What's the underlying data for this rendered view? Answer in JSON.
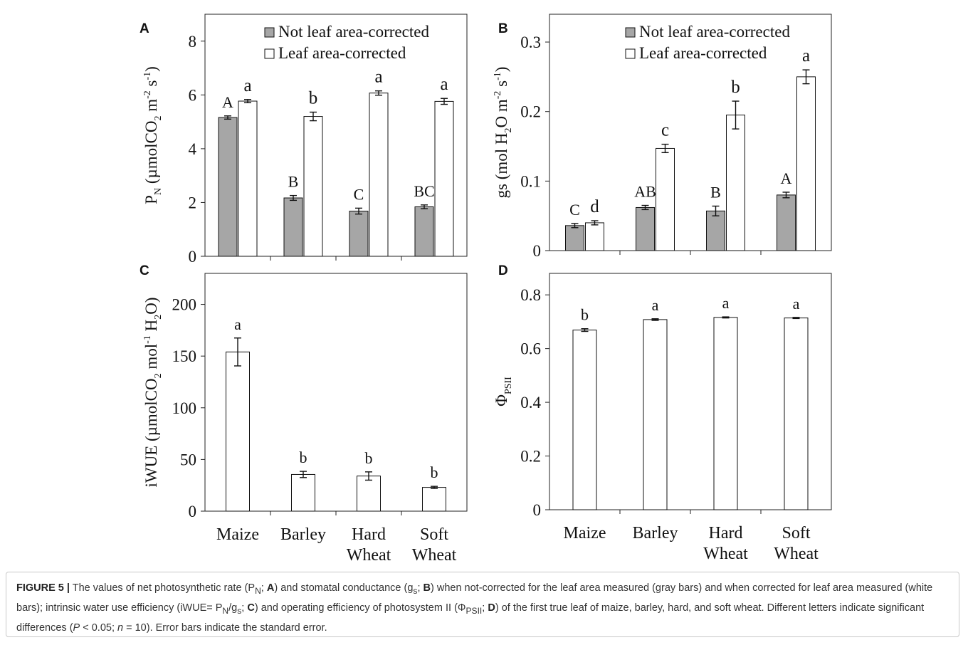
{
  "chart_data": [
    {
      "panel": "A",
      "type": "bar",
      "ylabel_main": "P",
      "ylabel_sub": "N",
      "ylabel_rest": " (µmolCO",
      "ylabel_sub2": "2",
      "ylabel_rest2": " m",
      "ylabel_sup1": "-2",
      "ylabel_rest3": " s",
      "ylabel_sup2": "-1",
      "ylabel_end": ")",
      "ylim": [
        0,
        9
      ],
      "yticks": [
        0,
        2,
        4,
        6,
        8
      ],
      "ytick_labels": [
        "0",
        "2",
        "4",
        "6",
        "8"
      ],
      "categories": [
        "Maize",
        "Barley",
        "Hard Wheat",
        "Soft Wheat"
      ],
      "legend": [
        "Not leaf area-corrected",
        "Leaf area-corrected"
      ],
      "series": [
        {
          "name": "Not leaf area-corrected",
          "color": "#a6a6a6",
          "values": [
            5.16,
            2.17,
            1.68,
            1.84
          ],
          "errors": [
            0.06,
            0.09,
            0.11,
            0.07
          ],
          "letters": [
            "A",
            "B",
            "C",
            "BC"
          ]
        },
        {
          "name": "Leaf area-corrected",
          "color": "#ffffff",
          "values": [
            5.77,
            5.2,
            6.07,
            5.76
          ],
          "errors": [
            0.06,
            0.16,
            0.08,
            0.11
          ],
          "letters": [
            "a",
            "b",
            "a",
            "a"
          ]
        }
      ]
    },
    {
      "panel": "B",
      "type": "bar",
      "ylabel_main": "gs (mol H",
      "ylabel_sub": "2",
      "ylabel_rest": "O m",
      "ylabel_sup1": "-2",
      "ylabel_rest3": " s",
      "ylabel_sup2": "-1",
      "ylabel_end": ")",
      "ylim": [
        0,
        0.34
      ],
      "yticks": [
        0,
        0.1,
        0.2,
        0.3
      ],
      "ytick_labels": [
        "0",
        "0.1",
        "0.2",
        "0.3"
      ],
      "categories": [
        "Maize",
        "Barley",
        "Hard Wheat",
        "Soft Wheat"
      ],
      "legend": [
        "Not leaf area-corrected",
        "Leaf area-corrected"
      ],
      "series": [
        {
          "name": "Not leaf area-corrected",
          "color": "#a6a6a6",
          "values": [
            0.036,
            0.062,
            0.057,
            0.08
          ],
          "errors": [
            0.003,
            0.003,
            0.007,
            0.004
          ],
          "letters": [
            "C",
            "AB",
            "B",
            "A"
          ]
        },
        {
          "name": "Leaf area-corrected",
          "color": "#ffffff",
          "values": [
            0.04,
            0.147,
            0.195,
            0.25
          ],
          "errors": [
            0.003,
            0.006,
            0.02,
            0.01
          ],
          "letters": [
            "d",
            "c",
            "b",
            "a"
          ]
        }
      ]
    },
    {
      "panel": "C",
      "type": "bar",
      "ylabel_main": "iWUE (µmolCO",
      "ylabel_sub": "2",
      "ylabel_rest": " mol",
      "ylabel_sup1": "-1",
      "ylabel_rest3": " H",
      "ylabel_sub3": "2",
      "ylabel_end": "O)",
      "ylim": [
        0,
        230
      ],
      "yticks": [
        0,
        50,
        100,
        150,
        200
      ],
      "ytick_labels": [
        "0",
        "50",
        "100",
        "150",
        "200"
      ],
      "categories": [
        "Maize",
        "Barley",
        "Hard Wheat",
        "Soft Wheat"
      ],
      "category_lines": [
        [
          "Maize"
        ],
        [
          "Barley"
        ],
        [
          "Hard",
          "Wheat"
        ],
        [
          "Soft",
          "Wheat"
        ]
      ],
      "series": [
        {
          "color": "#ffffff",
          "values": [
            154,
            35.5,
            34,
            23
          ],
          "errors": [
            13.5,
            3,
            4,
            1
          ],
          "letters": [
            "a",
            "b",
            "b",
            "b"
          ]
        }
      ]
    },
    {
      "panel": "D",
      "type": "bar",
      "ylabel_main": "Φ",
      "ylabel_sub": "PSII",
      "ylim": [
        0,
        0.88
      ],
      "yticks": [
        0,
        0.2,
        0.4,
        0.6,
        0.8
      ],
      "ytick_labels": [
        "0",
        "0.2",
        "0.4",
        "0.6",
        "0.8"
      ],
      "categories": [
        "Maize",
        "Barley",
        "Hard Wheat",
        "Soft Wheat"
      ],
      "category_lines": [
        [
          "Maize"
        ],
        [
          "Barley"
        ],
        [
          "Hard",
          "Wheat"
        ],
        [
          "Soft",
          "Wheat"
        ]
      ],
      "series": [
        {
          "color": "#ffffff",
          "values": [
            0.669,
            0.708,
            0.716,
            0.714
          ],
          "errors": [
            0.005,
            0.003,
            0.002,
            0.002
          ],
          "letters": [
            "b",
            "a",
            "a",
            "a"
          ]
        }
      ]
    }
  ],
  "caption": {
    "label": "FIGURE 5 |",
    "t1": " The values of net photosynthetic rate (P",
    "s1": "N",
    "t2": "; ",
    "b1": "A",
    "t3": ") and stomatal conductance (g",
    "s2": "s",
    "t4": "; ",
    "b2": "B",
    "t5": ") when not-corrected for the leaf area measured (gray bars) and when corrected for leaf area measured (white bars); intrinsic water use efficiency (iWUE= P",
    "s3": "N",
    "t6": "/g",
    "s4": "s",
    "t7": "; ",
    "b3": "C",
    "t8": ") and operating efficiency of photosystem II (Φ",
    "s5": "PSII",
    "t9": "; ",
    "b4": "D",
    "t10": ") of the first true leaf of maize, barley, hard, and soft wheat. Different letters indicate significant differences (",
    "i1": "P",
    "t11": " < 0.05; ",
    "i2": "n",
    "t12": " = 10). Error bars indicate the standard error."
  }
}
